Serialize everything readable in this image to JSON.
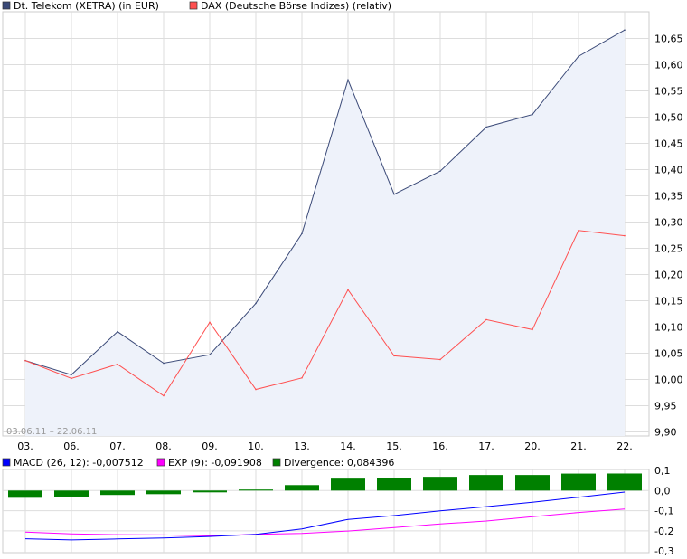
{
  "chart_data": [
    {
      "type": "line",
      "legend": [
        {
          "name": "Dt. Telekom (XETRA) (in EUR)",
          "color": "#3b4a78"
        },
        {
          "name": "DAX (Deutsche Börse Indizes) (relativ)",
          "color": "#ff5050"
        }
      ],
      "date_range": "03.06.11 – 22.06.11",
      "categories": [
        "03.",
        "06.",
        "07.",
        "08.",
        "09.",
        "10.",
        "13.",
        "14.",
        "15.",
        "16.",
        "17.",
        "20.",
        "21.",
        "22."
      ],
      "y_ticks": [
        "9,90",
        "9,95",
        "10,00",
        "10,05",
        "10,10",
        "10,15",
        "10,20",
        "10,25",
        "10,30",
        "10,35",
        "10,40",
        "10,45",
        "10,50",
        "10,55",
        "10,60",
        "10,65"
      ],
      "ylim": [
        9.9,
        10.7
      ],
      "grid": true,
      "series": [
        {
          "name": "Dt. Telekom (XETRA) (in EUR)",
          "color": "#3b4a78",
          "fill": "#eef2fa",
          "values": [
            10.036,
            10.009,
            10.091,
            10.031,
            10.047,
            10.145,
            10.278,
            10.571,
            10.353,
            10.397,
            10.481,
            10.505,
            10.616,
            10.666
          ]
        },
        {
          "name": "DAX (Deutsche Börse Indizes) (relativ)",
          "color": "#ff5050",
          "values": [
            10.036,
            10.002,
            10.029,
            9.969,
            10.109,
            9.981,
            10.003,
            10.171,
            10.045,
            10.038,
            10.114,
            10.095,
            10.284,
            10.274
          ]
        }
      ]
    },
    {
      "type": "bar+line",
      "legend": [
        {
          "name": "MACD (26, 12): -0,007512",
          "color": "#0000ff"
        },
        {
          "name": "EXP (9): -0,091908",
          "color": "#ff00ff"
        },
        {
          "name": "Divergence: 0,084396",
          "color": "#008000"
        }
      ],
      "y_ticks": [
        "0,1",
        "0,0",
        "-0,1",
        "-0,2",
        "-0,3"
      ],
      "ylim": [
        -0.3,
        0.1
      ],
      "grid": true,
      "divergence": [
        -0.036,
        -0.03,
        -0.022,
        -0.018,
        -0.009,
        0.005,
        0.027,
        0.059,
        0.063,
        0.068,
        0.077,
        0.077,
        0.084,
        0.084396
      ],
      "macd": [
        -0.239,
        -0.245,
        -0.24,
        -0.235,
        -0.228,
        -0.217,
        -0.19,
        -0.143,
        -0.124,
        -0.101,
        -0.08,
        -0.058,
        -0.033,
        -0.007512
      ],
      "exp": [
        -0.206,
        -0.215,
        -0.219,
        -0.22,
        -0.225,
        -0.217,
        -0.213,
        -0.201,
        -0.184,
        -0.166,
        -0.151,
        -0.13,
        -0.109,
        -0.091908
      ]
    }
  ]
}
